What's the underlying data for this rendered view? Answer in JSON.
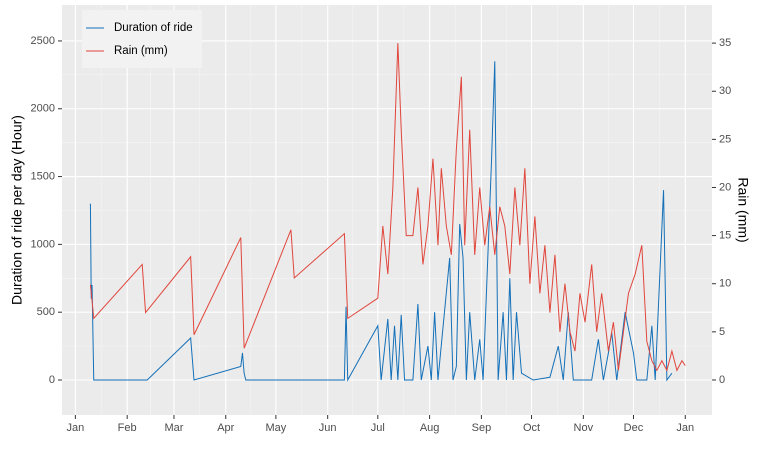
{
  "chart_data": {
    "type": "line",
    "y_label": "Duration of ride per day (Hour)",
    "y2_label": "Rain (mm)",
    "xlim": [
      -7,
      382
    ],
    "xticks": [
      {
        "value": 1,
        "label": "Jan"
      },
      {
        "value": 32,
        "label": "Feb"
      },
      {
        "value": 60,
        "label": "Mar"
      },
      {
        "value": 91,
        "label": "Apr"
      },
      {
        "value": 121,
        "label": "May"
      },
      {
        "value": 152,
        "label": "Jun"
      },
      {
        "value": 182,
        "label": "Jul"
      },
      {
        "value": 213,
        "label": "Aug"
      },
      {
        "value": 244,
        "label": "Sep"
      },
      {
        "value": 274,
        "label": "Oct"
      },
      {
        "value": 305,
        "label": "Nov"
      },
      {
        "value": 335,
        "label": "Dec"
      },
      {
        "value": 366,
        "label": "Jan"
      }
    ],
    "ylim": [
      -258,
      2765
    ],
    "yticks": [
      0,
      500,
      1000,
      1500,
      2000,
      2500
    ],
    "y2lim": [
      -3.64,
      38.96
    ],
    "y2ticks": [
      0,
      5,
      10,
      15,
      20,
      25,
      30,
      35
    ],
    "grid": true,
    "legend_position": "top-left",
    "series": [
      {
        "name": "Duration of ride",
        "color": "#1470b8",
        "x": [
          10,
          10.5,
          11,
          12,
          44,
          70,
          72,
          100,
          101,
          102,
          103,
          162,
          163,
          164,
          182,
          184,
          188,
          190,
          192,
          194,
          196,
          198,
          203,
          206,
          208,
          212,
          214,
          216,
          218,
          225,
          227,
          229,
          231,
          233,
          235,
          237,
          240,
          243,
          245,
          250,
          252,
          254,
          257,
          259,
          261,
          263,
          265,
          268,
          275,
          285,
          290,
          293,
          296,
          299,
          310,
          314,
          317,
          320,
          322,
          325,
          330,
          335,
          337,
          343,
          346,
          348,
          353,
          355,
          358
        ],
        "values": [
          1300,
          600,
          700,
          0,
          0,
          310,
          0,
          100,
          200,
          50,
          0,
          0,
          540,
          0,
          400,
          0,
          450,
          0,
          400,
          0,
          480,
          0,
          0,
          560,
          0,
          250,
          0,
          500,
          0,
          900,
          0,
          100,
          1150,
          900,
          0,
          500,
          0,
          300,
          0,
          1600,
          2350,
          0,
          500,
          0,
          750,
          0,
          500,
          50,
          0,
          20,
          250,
          0,
          500,
          0,
          0,
          300,
          0,
          200,
          350,
          0,
          500,
          200,
          0,
          0,
          400,
          0,
          1400,
          0,
          50
        ]
      },
      {
        "name": "Rain (mm)",
        "color": "#e0463c",
        "axis": "y2",
        "x": [
          10,
          11,
          12,
          41,
          43,
          70,
          72,
          100,
          102,
          130,
          132,
          162,
          164,
          182,
          185,
          188,
          191,
          194,
          196,
          199,
          203,
          206,
          209,
          212,
          215,
          218,
          220,
          223,
          226,
          229,
          232,
          234,
          237,
          240,
          243,
          246,
          249,
          252,
          255,
          258,
          261,
          264,
          267,
          270,
          273,
          276,
          279,
          282,
          285,
          288,
          291,
          294,
          297,
          300,
          303,
          306,
          310,
          313,
          316,
          320,
          323,
          326,
          329,
          332,
          336,
          340,
          343,
          346,
          349,
          352,
          355,
          358,
          361,
          364,
          366
        ],
        "values": [
          9.9,
          8.2,
          6.4,
          12,
          7,
          12.8,
          4.7,
          14.8,
          3.3,
          15.6,
          10.6,
          15.2,
          6.4,
          8.5,
          16,
          11,
          20,
          35,
          26,
          15,
          15,
          20,
          12,
          16,
          23,
          14,
          22,
          16,
          13,
          24,
          31.5,
          14,
          26,
          13,
          20,
          14,
          18,
          13,
          18,
          16,
          11,
          20,
          14,
          22,
          10,
          17,
          9,
          14,
          7,
          13,
          5,
          10,
          5,
          3,
          9,
          6,
          12,
          5,
          9,
          3,
          6,
          1,
          5,
          9,
          11,
          14,
          4,
          2,
          1,
          2,
          1,
          3,
          1,
          2,
          1.5
        ]
      }
    ]
  }
}
